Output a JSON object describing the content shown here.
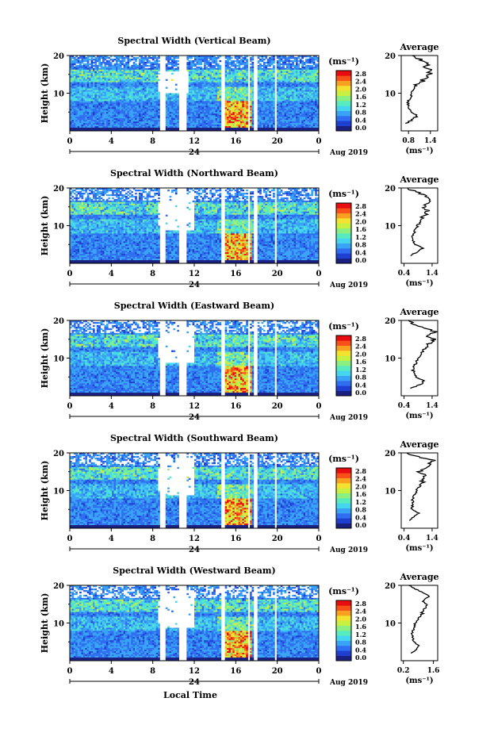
{
  "chart_data": {
    "type": "heatmap",
    "date_label": "Aug 2019",
    "day_label": "24",
    "xlabel": "Local Time",
    "ylabel": "Height (km)",
    "x_ticks": [
      "0",
      "4",
      "8",
      "12",
      "16",
      "20",
      "0"
    ],
    "y_ticks": [
      "20",
      "10"
    ],
    "colorbar": {
      "unit": "(ms⁻¹)",
      "ticks": [
        "2.8",
        "2.4",
        "2.0",
        "1.6",
        "1.2",
        "0.8",
        "0.4",
        "0.0"
      ],
      "colors": [
        "#1a2080",
        "#1e3fd0",
        "#2f6ef0",
        "#39a4f5",
        "#46d5ee",
        "#59ebc0",
        "#8bf080",
        "#c8f040",
        "#f4e230",
        "#f8a020",
        "#f85018",
        "#e80c10"
      ]
    },
    "data_gaps_hours": [
      [
        8.7,
        9.2
      ],
      [
        10.5,
        11.3
      ],
      [
        14.6,
        15.0
      ],
      [
        17.1,
        17.4
      ],
      [
        17.7,
        18.0
      ],
      [
        19.7,
        20.0
      ]
    ],
    "panels": [
      {
        "title": "Spectral Width (Vertical Beam)",
        "avg_title": "Average",
        "avg_unit": "(ms⁻¹)",
        "avg_xticks": [
          "0.8",
          "1.4"
        ],
        "avg_xlim": [
          0.6,
          1.6
        ],
        "avg_height_km": [
          2,
          3,
          4,
          5,
          6,
          7,
          8,
          9,
          10,
          11,
          12,
          13,
          14,
          15,
          16,
          17,
          18,
          19,
          20
        ],
        "avg_values": [
          0.72,
          0.9,
          1.05,
          0.85,
          0.8,
          0.78,
          0.82,
          0.84,
          0.88,
          0.95,
          1.02,
          1.15,
          1.25,
          1.35,
          1.45,
          1.3,
          1.4,
          1.1,
          0.9
        ]
      },
      {
        "title": "Spectral Width (Northward Beam)",
        "avg_title": "Average",
        "avg_unit": "(ms⁻¹)",
        "avg_xticks": [
          "0.4",
          "1.4"
        ],
        "avg_xlim": [
          0.3,
          1.6
        ],
        "avg_height_km": [
          2,
          3,
          4,
          5,
          6,
          7,
          8,
          9,
          10,
          11,
          12,
          13,
          14,
          15,
          16,
          17,
          18,
          19,
          20
        ],
        "avg_values": [
          0.6,
          0.85,
          1.05,
          0.8,
          0.72,
          0.7,
          0.75,
          0.8,
          0.88,
          1.0,
          1.05,
          1.15,
          1.25,
          1.1,
          1.3,
          1.4,
          1.2,
          0.8,
          0.55
        ]
      },
      {
        "title": "Spectral Width (Eastward Beam)",
        "avg_title": "Average",
        "avg_unit": "(ms⁻¹)",
        "avg_xticks": [
          "0.4",
          "1.4"
        ],
        "avg_xlim": [
          0.3,
          1.6
        ],
        "avg_height_km": [
          2,
          3,
          4,
          5,
          6,
          7,
          8,
          9,
          10,
          11,
          12,
          13,
          14,
          15,
          16,
          17,
          18,
          19,
          20
        ],
        "avg_values": [
          0.65,
          1.0,
          1.1,
          0.82,
          0.75,
          0.72,
          0.78,
          0.85,
          0.9,
          1.0,
          1.1,
          1.2,
          1.3,
          1.45,
          1.2,
          1.5,
          1.1,
          0.75,
          0.55
        ]
      },
      {
        "title": "Spectral Width (Southward Beam)",
        "avg_title": "Average",
        "avg_unit": "(ms⁻¹)",
        "avg_xticks": [
          "0.4",
          "1.4"
        ],
        "avg_xlim": [
          0.3,
          1.6
        ],
        "avg_height_km": [
          2,
          3,
          4,
          5,
          6,
          7,
          8,
          9,
          10,
          11,
          12,
          13,
          14,
          15,
          16,
          17,
          18,
          19,
          20
        ],
        "avg_values": [
          0.6,
          0.75,
          0.95,
          0.7,
          0.68,
          0.7,
          0.72,
          0.78,
          0.85,
          0.95,
          1.05,
          1.1,
          1.15,
          0.95,
          1.2,
          1.3,
          1.45,
          0.9,
          0.5
        ]
      },
      {
        "title": "Spectral Width (Westward Beam)",
        "avg_title": "Average",
        "avg_unit": "(ms⁻¹)",
        "avg_xticks": [
          "0.2",
          "1.6"
        ],
        "avg_xlim": [
          0.1,
          1.8
        ],
        "avg_height_km": [
          2,
          3,
          4,
          5,
          6,
          7,
          8,
          9,
          10,
          11,
          12,
          13,
          14,
          15,
          16,
          17,
          18,
          19,
          20
        ],
        "avg_values": [
          0.55,
          0.8,
          0.9,
          0.7,
          0.62,
          0.6,
          0.65,
          0.7,
          0.75,
          0.9,
          1.0,
          1.1,
          1.2,
          1.3,
          1.1,
          1.35,
          1.2,
          0.8,
          0.45
        ]
      }
    ]
  }
}
